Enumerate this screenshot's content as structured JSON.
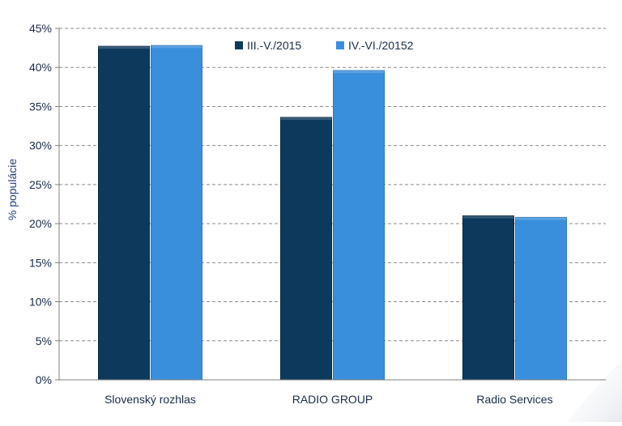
{
  "chart_data": {
    "type": "bar",
    "title": "",
    "xlabel": "",
    "ylabel": "% populácie",
    "ylim": [
      0,
      45
    ],
    "ytick_step": 5,
    "ytick_format": "percent",
    "grid": true,
    "legend_position": "top-right",
    "categories": [
      "Slovenský rozhlas",
      "RADIO GROUP",
      "Radio Services"
    ],
    "series": [
      {
        "name": "III.-V./2015",
        "values": [
          42.7,
          33.6,
          21.0
        ],
        "color": "#0d3a5c"
      },
      {
        "name": "IV.-VI./20152",
        "values": [
          42.8,
          39.6,
          20.8
        ],
        "color": "#3a8fdc"
      }
    ]
  },
  "colors": {
    "axis_text": "#1a2b4a",
    "ylabel_text": "#1f3f7a",
    "grid": "#8a8a8a",
    "axis_line": "#7f7f7f"
  }
}
